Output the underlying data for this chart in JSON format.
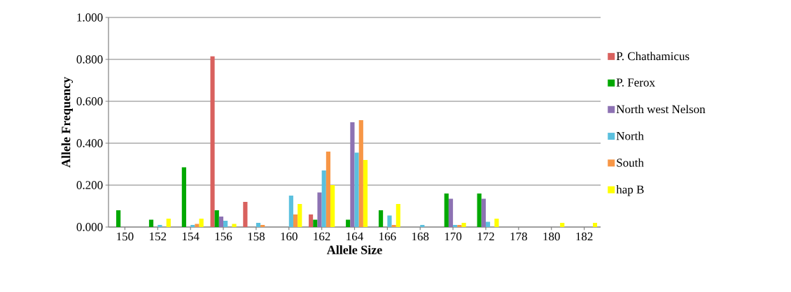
{
  "chart_data": {
    "type": "bar",
    "xlabel": "Allele Size",
    "ylabel": "Allele Frequency",
    "categories": [
      "150",
      "152",
      "154",
      "156",
      "158",
      "160",
      "162",
      "164",
      "166",
      "168",
      "170",
      "172",
      "178",
      "180",
      "182"
    ],
    "series": [
      {
        "name": "P. Chathamicus",
        "color": "#d9615e",
        "values": [
          null,
          null,
          null,
          0.815,
          0.12,
          null,
          0.06,
          null,
          null,
          null,
          null,
          null,
          null,
          null,
          null
        ]
      },
      {
        "name": "P. Ferox",
        "color": "#00a800",
        "values": [
          0.08,
          0.035,
          0.285,
          0.08,
          null,
          null,
          0.035,
          0.035,
          0.08,
          null,
          0.16,
          0.16,
          null,
          null,
          null
        ]
      },
      {
        "name": "North west Nelson",
        "color": "#8d72b3",
        "values": [
          null,
          null,
          null,
          0.05,
          null,
          null,
          0.165,
          0.5,
          null,
          null,
          0.135,
          0.135,
          null,
          null,
          null
        ]
      },
      {
        "name": "North",
        "color": "#5bc0de",
        "values": [
          null,
          0.01,
          0.01,
          0.03,
          0.02,
          0.15,
          0.27,
          0.355,
          0.055,
          0.01,
          0.01,
          0.025,
          null,
          null,
          null
        ]
      },
      {
        "name": "South",
        "color": "#f79646",
        "values": [
          null,
          null,
          0.015,
          null,
          0.01,
          0.06,
          0.36,
          0.51,
          0.01,
          null,
          0.01,
          null,
          null,
          null,
          null
        ]
      },
      {
        "name": "hap B",
        "color": "#ffff00",
        "values": [
          null,
          0.04,
          0.04,
          0.015,
          null,
          0.11,
          0.2,
          0.32,
          0.11,
          null,
          0.02,
          0.04,
          null,
          0.02,
          0.02
        ]
      }
    ],
    "ylim": [
      0,
      1
    ],
    "yticks": [
      {
        "value": 0,
        "label": "0.000"
      },
      {
        "value": 0.2,
        "label": "0.200"
      },
      {
        "value": 0.4,
        "label": "0.400"
      },
      {
        "value": 0.6,
        "label": "0.600"
      },
      {
        "value": 0.8,
        "label": "0.800"
      },
      {
        "value": 1,
        "label": "1.000"
      }
    ],
    "grid": "y",
    "legend": "right"
  }
}
